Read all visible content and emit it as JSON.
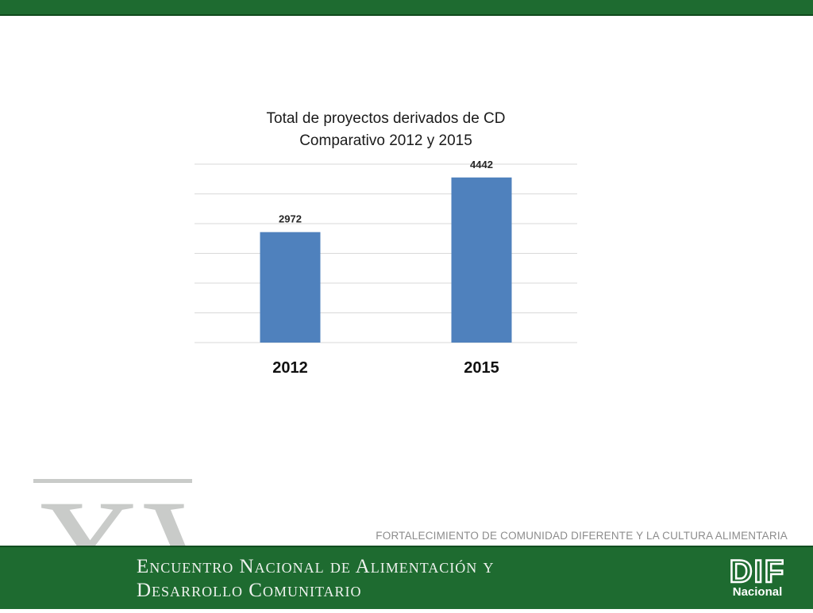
{
  "slide": {
    "program": "FORTALECIMIENTO DE COMUNIDAD DIFERENTE Y LA CULTURA ALIMENTARIA",
    "watermark": "XVI",
    "event_line1": "Encuentro Nacional de Alimentación y",
    "event_line2": "Desarrollo Comunitario",
    "logo_text": "DIF",
    "logo_sub": "Nacional"
  },
  "colors": {
    "brand_green": "#1e6b30",
    "bar": "#4f81bd",
    "gridline": "#d9d9d9"
  },
  "chart_data": {
    "type": "bar",
    "title_line1": "Total de proyectos derivados de CD",
    "title_line2": "Comparativo 2012 y 2015",
    "categories": [
      "2012",
      "2015"
    ],
    "values": [
      2972,
      4442
    ],
    "ylim": [
      0,
      4800
    ],
    "ytick_step": 800,
    "grid": true,
    "show_y_axis_labels": false,
    "xlabel": "",
    "ylabel": ""
  }
}
